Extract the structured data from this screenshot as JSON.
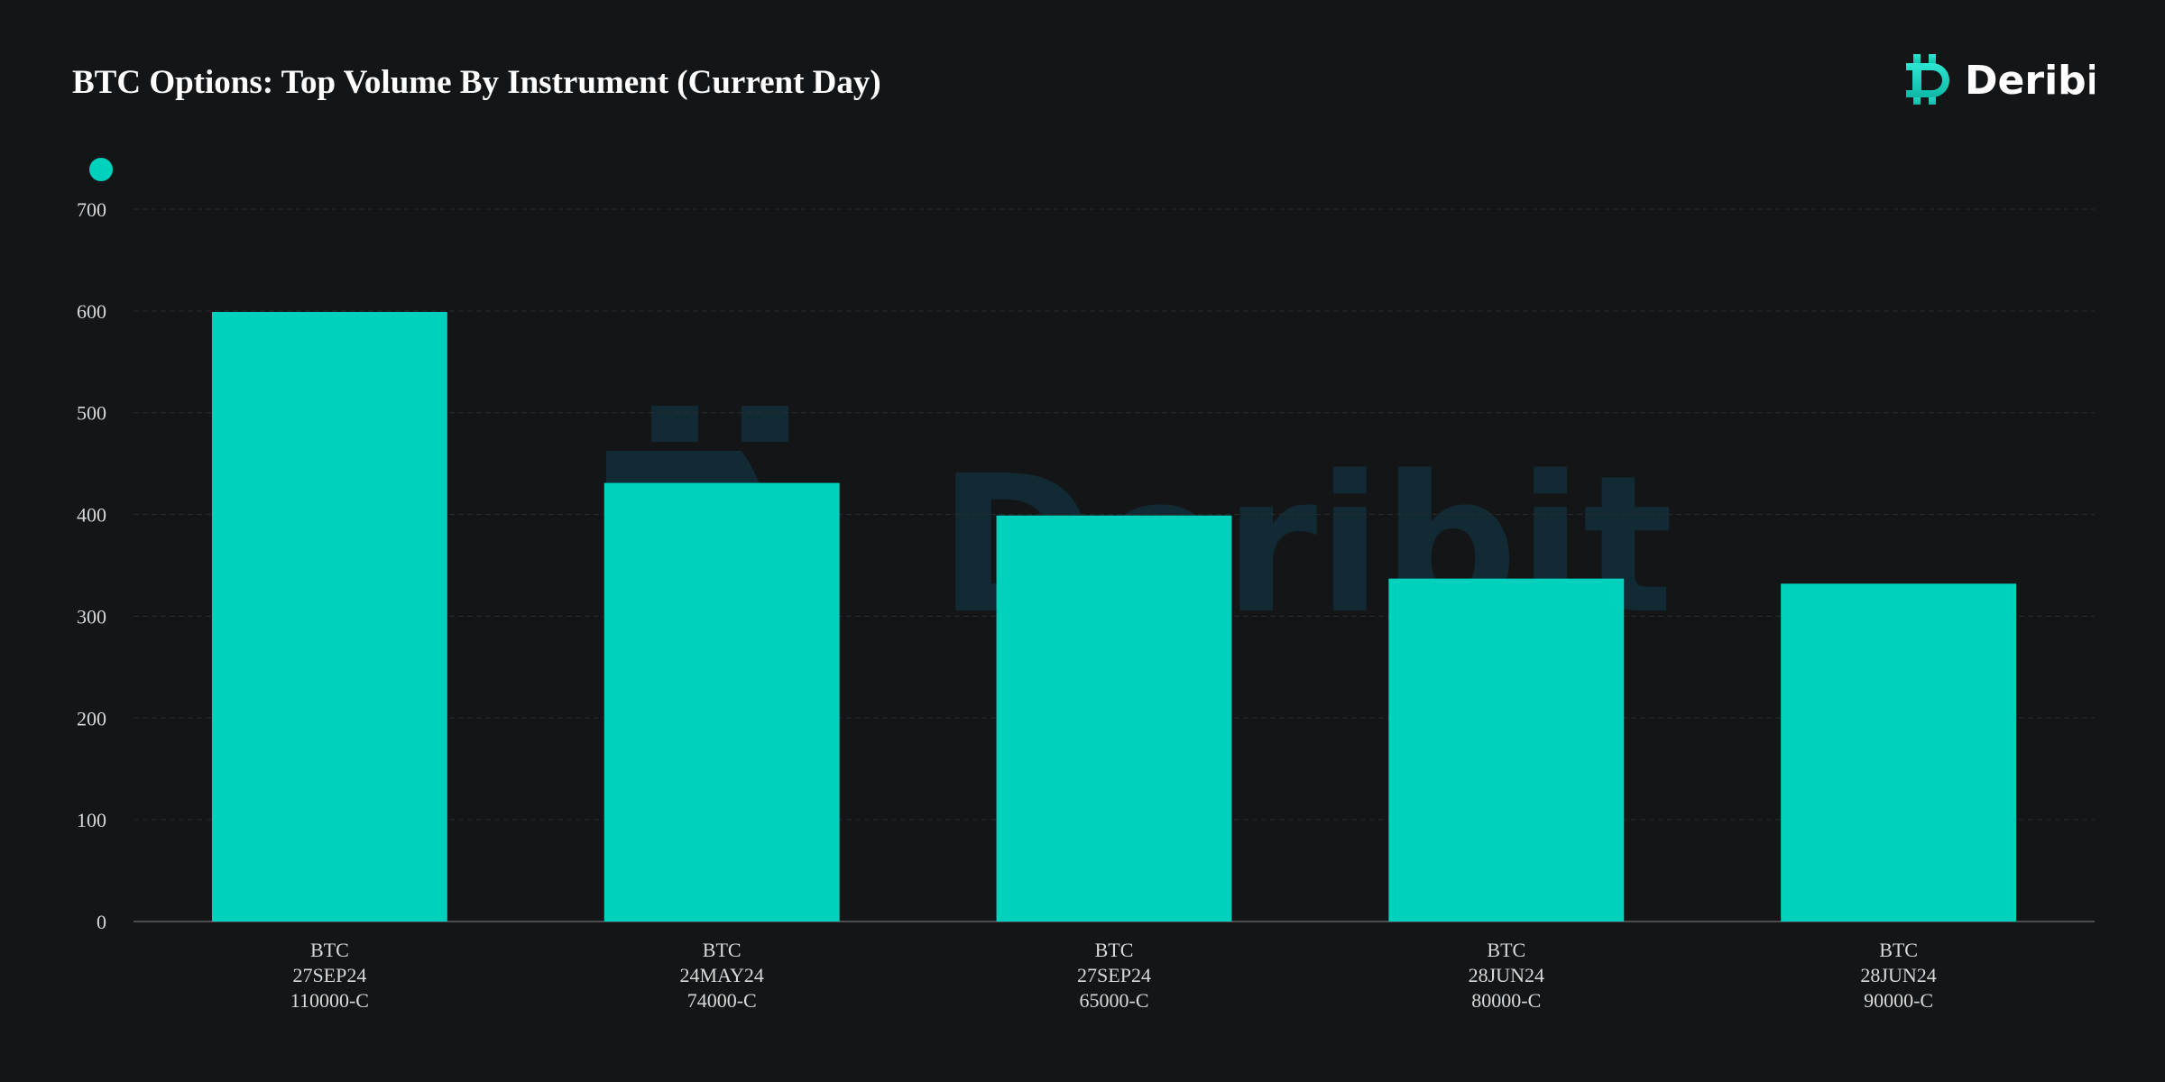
{
  "title": "BTC Options: Top Volume By Instrument (Current Day)",
  "brand": {
    "name": "Deribit",
    "icon": "deribit-logo-icon",
    "accent_color": "#2ee6d3",
    "accent_color_dark": "#0fb8a6"
  },
  "watermark": {
    "text": "Deribit",
    "color": "#112a33"
  },
  "legend": {
    "placement": "top-left",
    "entries": [
      {
        "label": "",
        "color": "#00d1bd"
      }
    ]
  },
  "colors": {
    "background": "#131517",
    "bar": "#00d1bd",
    "grid": "#2a2d31",
    "axis": "#4a4d52",
    "text": "#d9d9d9"
  },
  "chart_data": {
    "type": "bar",
    "title": "BTC Options: Top Volume By Instrument (Current Day)",
    "xlabel": "",
    "ylabel": "",
    "categories": [
      [
        "BTC",
        "27SEP24",
        "110000-C"
      ],
      [
        "BTC",
        "24MAY24",
        "74000-C"
      ],
      [
        "BTC",
        "27SEP24",
        "65000-C"
      ],
      [
        "BTC",
        "28JUN24",
        "80000-C"
      ],
      [
        "BTC",
        "28JUN24",
        "90000-C"
      ]
    ],
    "series": [
      {
        "values": [
          599,
          431,
          399,
          337,
          332
        ]
      }
    ],
    "ylim": [
      0,
      700
    ],
    "yticks": [
      0,
      100,
      200,
      300,
      400,
      500,
      600,
      700
    ],
    "grid": true,
    "grid_style": "dashed"
  }
}
